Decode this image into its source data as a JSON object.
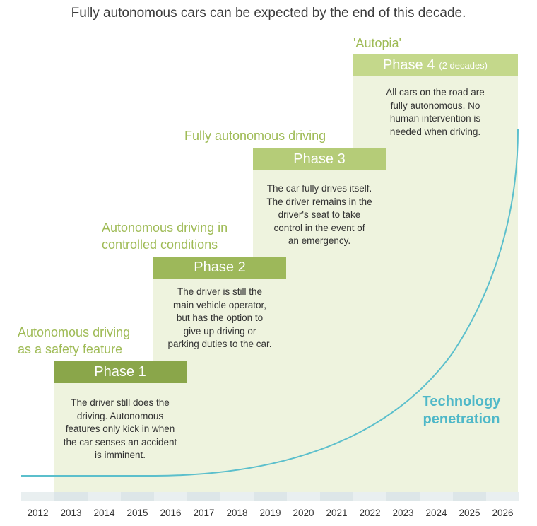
{
  "title": "Fully autonomous cars can be expected by the end of this decade.",
  "phases": [
    {
      "stage": "Autonomous driving as a safety feature",
      "stage_lines": [
        "Autonomous driving",
        "as a safety feature"
      ],
      "header": "Phase 1",
      "header_sub": "",
      "description_lines": [
        "The driver still does the",
        "driving. Autonomous",
        "features only kick in when",
        "the car senses an accident",
        "is imminent."
      ]
    },
    {
      "stage": "Autonomous driving in controlled conditions",
      "stage_lines": [
        "Autonomous driving in",
        "controlled conditions"
      ],
      "header": "Phase 2",
      "header_sub": "",
      "description_lines": [
        "The driver is still the",
        "main vehicle operator,",
        "but has the option to",
        "give up driving or",
        "parking duties to the car."
      ]
    },
    {
      "stage": "Fully autonomous driving",
      "stage_lines": [
        "Fully autonomous driving"
      ],
      "header": "Phase 3",
      "header_sub": "",
      "description_lines": [
        "The car fully drives itself.",
        "The driver remains in the",
        "driver's seat to take",
        "control in the event of",
        "an emergency."
      ]
    },
    {
      "stage": "'Autopia'",
      "stage_lines": [
        "'Autopia'"
      ],
      "header": "Phase 4",
      "header_sub": "(2 decades)",
      "description_lines": [
        "All cars on the road are",
        "fully autonomous. No",
        "human intervention is",
        "needed when driving."
      ]
    }
  ],
  "curve_label_lines": [
    "Technology",
    "penetration"
  ],
  "years": [
    "2012",
    "2013",
    "2014",
    "2015",
    "2016",
    "2017",
    "2018",
    "2019",
    "2020",
    "2021",
    "2022",
    "2023",
    "2024",
    "2025",
    "2026"
  ],
  "colors": {
    "green_dark": "#8aa64a",
    "green_mid": "#9db85a",
    "green_light": "#b5cc78",
    "green_lighter": "#c4d88b",
    "column_fill": "#eef3de",
    "curve": "#5bbfcc",
    "year_band_a": "#dde6e8",
    "year_band_b": "#e9eff0"
  }
}
